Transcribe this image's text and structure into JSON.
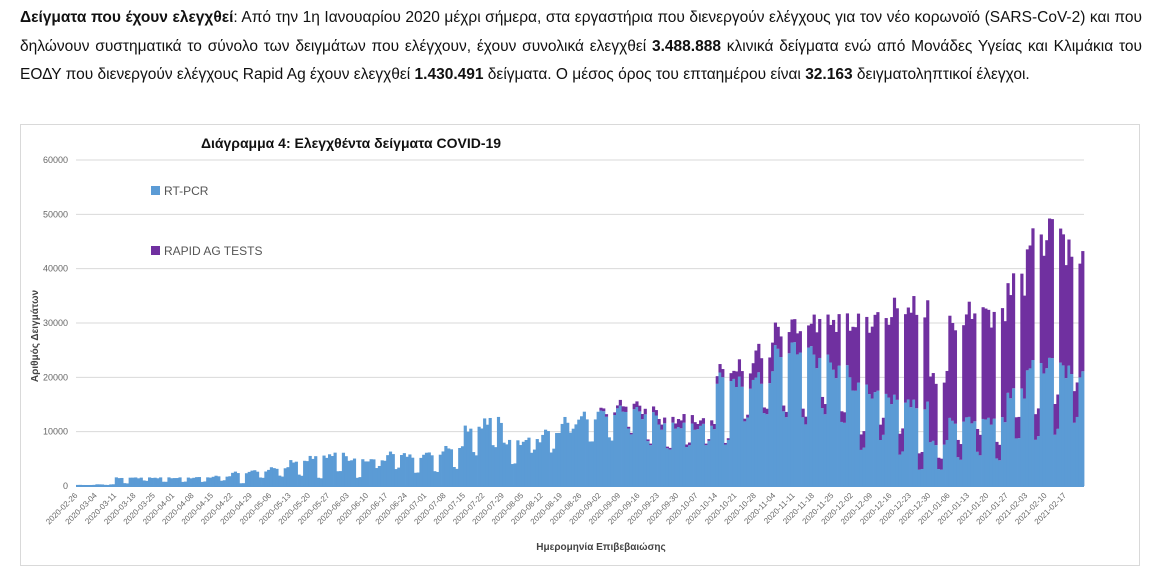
{
  "intro": {
    "lead": "Δείγματα που έχουν ελεγχθεί",
    "t1": ":  Από την 1η Ιανουαρίου 2020 μέχρι σήμερα, στα εργαστήρια που διενεργούν ελέγχους για τον νέο κορωνοϊό (SARS-CoV-2) και που δηλώνουν συστηματικά το σύνολο των δειγμάτων που ελέγχουν, έχουν συνολικά ελεγχθεί ",
    "pcr_total": "3.488.888",
    "t2": " κλινικά δείγματα ενώ από Μονάδες Υγείας και Κλιμάκια του ΕΟΔΥ που διενεργούν ελέγχους Rapid Ag έχουν ελεγχθεί ",
    "rapid_total": "1.430.491",
    "t3": " δείγματα. Ο μέσος όρος του επταημέρου είναι ",
    "avg": "32.163",
    "t4": " δειγματοληπτικοί έλεγχοι."
  },
  "chart_data": {
    "type": "bar",
    "stacked": true,
    "title": "Διάγραμμα 4: Ελεγχθέντα δείγματα COVID-19",
    "xlabel": "Ημερομηνία Επιβεβαιώσης",
    "ylabel": "Αριθμός Δειγμάτων",
    "ylim": [
      0,
      60000
    ],
    "yticks": [
      "0",
      "10000",
      "20000",
      "30000",
      "40000",
      "50000",
      "60000"
    ],
    "grid": true,
    "legend_placement": "top-left",
    "note": "weekly values: weekday level / weekend level, each week = 5 weekdays + 2 weekend days",
    "weeks": [
      "2020-02-26",
      "2020-03-04",
      "2020-03-11",
      "2020-03-18",
      "2020-03-25",
      "2020-04-01",
      "2020-04-08",
      "2020-04-15",
      "2020-04-22",
      "2020-04-29",
      "2020-05-06",
      "2020-05-13",
      "2020-05-20",
      "2020-05-27",
      "2020-06-03",
      "2020-06-10",
      "2020-06-17",
      "2020-06-24",
      "2020-07-01",
      "2020-07-08",
      "2020-07-15",
      "2020-07-22",
      "2020-07-29",
      "2020-08-05",
      "2020-08-12",
      "2020-08-19",
      "2020-08-26",
      "2020-09-02",
      "2020-09-09",
      "2020-09-16",
      "2020-09-23",
      "2020-09-30",
      "2020-10-07",
      "2020-10-14",
      "2020-10-21",
      "2020-10-28",
      "2020-11-04",
      "2020-11-11",
      "2020-11-18",
      "2020-11-25",
      "2020-12-02",
      "2020-12-09",
      "2020-12-16",
      "2020-12-23",
      "2020-12-30",
      "2021-01-06",
      "2021-01-13",
      "2021-01-20",
      "2021-01-27",
      "2021-02-03",
      "2021-02-10",
      "2021-02-17"
    ],
    "series": [
      {
        "name": "RT-PCR",
        "color": "#5b9bd5",
        "weekday": [
          200,
          300,
          1500,
          1500,
          1500,
          1500,
          1600,
          1800,
          2500,
          2800,
          3300,
          4500,
          5300,
          5800,
          4800,
          4800,
          6000,
          5500,
          6000,
          7000,
          10500,
          12000,
          8000,
          8500,
          10000,
          12000,
          13000,
          13500,
          14000,
          13000,
          11000,
          11000,
          11000,
          20000,
          19000,
          20000,
          25000,
          25000,
          23000,
          21000,
          18000,
          17000,
          16000,
          15000,
          8000,
          12000,
          12000,
          12000,
          17000,
          22000,
          23000,
          21000
        ],
        "weekend": [
          100,
          200,
          500,
          1000,
          800,
          800,
          800,
          1000,
          500,
          1500,
          1800,
          2000,
          1500,
          2800,
          1600,
          3500,
          3200,
          2400,
          2600,
          3300,
          6000,
          7500,
          4200,
          6500,
          6500,
          10000,
          8000,
          8500,
          10000,
          8000,
          7000,
          7500,
          8000,
          8000,
          12000,
          13000,
          13000,
          12000,
          14000,
          12000,
          7000,
          9000,
          6000,
          3000,
          3000,
          5000,
          6000,
          5000,
          9000,
          9000,
          10000,
          12000
        ]
      },
      {
        "name": "RAPID AG TESTS",
        "color": "#7030a0",
        "weekday": [
          0,
          0,
          0,
          0,
          0,
          0,
          0,
          0,
          0,
          0,
          0,
          0,
          0,
          0,
          0,
          0,
          0,
          0,
          0,
          0,
          0,
          0,
          0,
          0,
          0,
          0,
          0,
          500,
          1000,
          1000,
          1000,
          1500,
          1000,
          1500,
          3000,
          5000,
          4000,
          4000,
          7000,
          9000,
          12000,
          14000,
          17000,
          18000,
          12000,
          18000,
          20000,
          19000,
          20000,
          23000,
          25000,
          22000
        ],
        "weekend": [
          0,
          0,
          0,
          0,
          0,
          0,
          0,
          0,
          0,
          0,
          0,
          0,
          0,
          0,
          0,
          0,
          0,
          0,
          0,
          0,
          0,
          0,
          0,
          0,
          0,
          0,
          0,
          0,
          300,
          300,
          300,
          500,
          300,
          300,
          500,
          1000,
          1000,
          1500,
          2000,
          2000,
          3000,
          3000,
          4000,
          3000,
          2000,
          3000,
          4000,
          3000,
          4000,
          5000,
          6000,
          6000
        ]
      }
    ]
  }
}
